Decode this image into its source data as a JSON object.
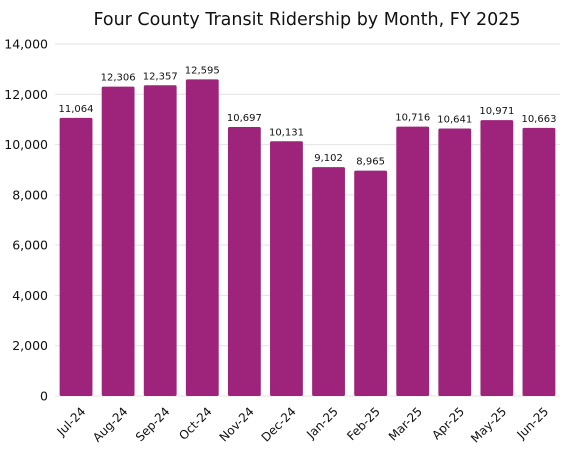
{
  "chart_data": {
    "type": "bar",
    "title": "Four County Transit Ridership by Month, FY 2025",
    "xlabel": "",
    "ylabel": "",
    "categories": [
      "Jul-24",
      "Aug-24",
      "Sep-24",
      "Oct-24",
      "Nov-24",
      "Dec-24",
      "Jan-25",
      "Feb-25",
      "Mar-25",
      "Apr-25",
      "May-25",
      "Jun-25"
    ],
    "values": [
      11064,
      12306,
      12357,
      12595,
      10697,
      10131,
      9102,
      8965,
      10716,
      10641,
      10971,
      10663
    ],
    "data_labels": [
      "11,064",
      "12,306",
      "12,357",
      "12,595",
      "10,697",
      "10,131",
      "9,102",
      "8,965",
      "10,716",
      "10,641",
      "10,971",
      "10,663"
    ],
    "ylim": [
      0,
      14000
    ],
    "yticks": [
      0,
      2000,
      4000,
      6000,
      8000,
      10000,
      12000,
      14000
    ],
    "ytick_labels": [
      "0",
      "2,000",
      "4,000",
      "6,000",
      "8,000",
      "10,000",
      "12,000",
      "14,000"
    ],
    "grid": true,
    "bar_color": "#9e237b",
    "legend": "none"
  }
}
